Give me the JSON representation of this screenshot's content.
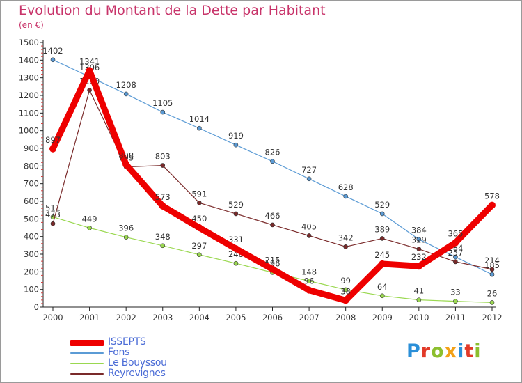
{
  "title": "Evolution du Montant de la Dette par Habitant",
  "subtitle": "(en €)",
  "logo": [
    "P",
    "r",
    "o",
    "x",
    "i",
    "t",
    "i"
  ],
  "chart_data": {
    "type": "line",
    "x": [
      "2000",
      "2001",
      "2002",
      "2003",
      "2004",
      "2005",
      "2006",
      "2007",
      "2008",
      "2009",
      "2010",
      "2011",
      "2012"
    ],
    "ylim": [
      0,
      1500
    ],
    "yticks": [
      0,
      100,
      200,
      300,
      400,
      500,
      600,
      700,
      800,
      900,
      1000,
      1100,
      1200,
      1300,
      1400,
      1500
    ],
    "grid": false,
    "legend_position": "bottom-left",
    "series": [
      {
        "name": "Fons",
        "color": "#5b9bd5",
        "width": 1.2,
        "values": [
          1402,
          1306,
          1208,
          1105,
          1014,
          919,
          826,
          727,
          628,
          529,
          384,
          284,
          185
        ]
      },
      {
        "name": "Le Bouyssou",
        "color": "#9ad850",
        "width": 1.2,
        "values": [
          511,
          449,
          396,
          348,
          297,
          248,
          196,
          148,
          99,
          64,
          41,
          33,
          26
        ]
      },
      {
        "name": "Reyrevignes",
        "color": "#7a2a2a",
        "width": 1.2,
        "values": [
          473,
          1230,
          795,
          803,
          591,
          529,
          466,
          405,
          342,
          389,
          329,
          257,
          214
        ]
      },
      {
        "name": "ISSEPTS",
        "color": "#ee0000",
        "width": 9,
        "values": [
          897,
          1341,
          808,
          573,
          450,
          331,
          215,
          96,
          38,
          245,
          232,
          365,
          578
        ]
      }
    ]
  }
}
